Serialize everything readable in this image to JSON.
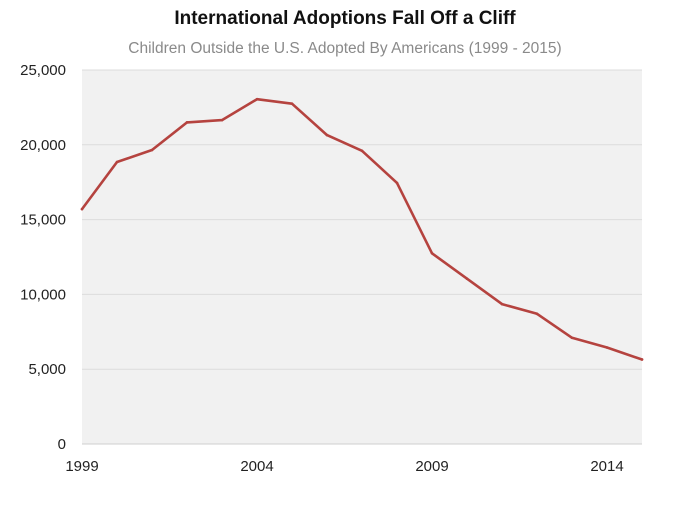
{
  "chart_data": {
    "type": "line",
    "title": "International Adoptions Fall Off a Cliff",
    "subtitle": "Children Outside the U.S. Adopted By Americans (1999 - 2015)",
    "xlabel": "",
    "ylabel": "",
    "xlim": [
      1999,
      2015
    ],
    "ylim": [
      0,
      25000
    ],
    "x_ticks": [
      1999,
      2004,
      2009,
      2014
    ],
    "x_tick_labels": [
      "1999",
      "2004",
      "2009",
      "2014"
    ],
    "y_ticks": [
      0,
      5000,
      10000,
      15000,
      20000,
      25000
    ],
    "y_tick_labels": [
      "0",
      "5,000",
      "10,000",
      "15,000",
      "20,000",
      "25,000"
    ],
    "grid": true,
    "line_color": "#b5433f",
    "plot_background": "#f1f1f1",
    "series": [
      {
        "x": [
          1999,
          2000,
          2001,
          2002,
          2003,
          2004,
          2005,
          2006,
          2007,
          2008,
          2009,
          2010,
          2011,
          2012,
          2013,
          2014,
          2015
        ],
        "values": [
          15700,
          18850,
          19650,
          21500,
          21650,
          23050,
          22750,
          20650,
          19600,
          17450,
          12750,
          11050,
          9350,
          8700,
          7100,
          6450,
          5650
        ]
      }
    ]
  }
}
